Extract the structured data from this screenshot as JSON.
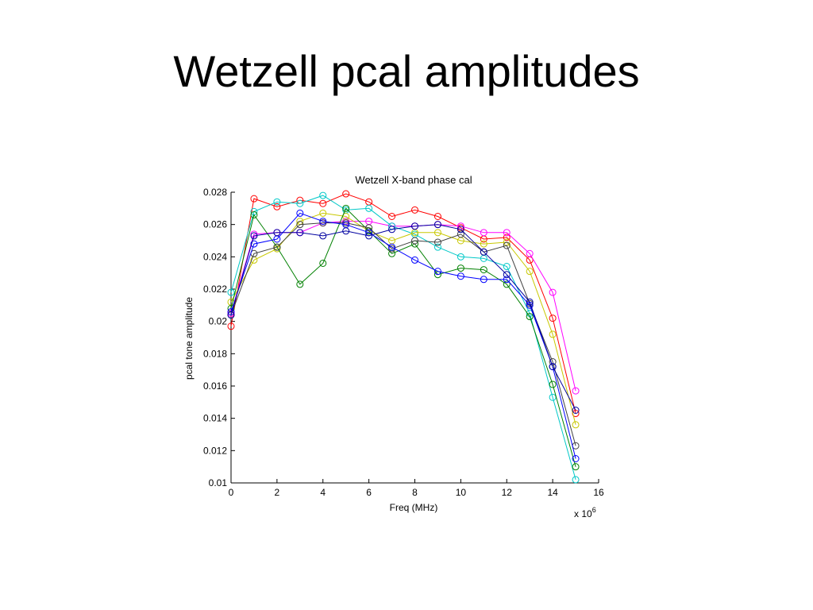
{
  "slide": {
    "title": "Wetzell pcal amplitudes"
  },
  "chart_data": {
    "type": "line",
    "title": "Wetzell X-band phase cal",
    "xlabel": "Freq (MHz)",
    "ylabel": "pcal tone amplitude",
    "x_exponent_label": "x 10",
    "x_exponent_power": "6",
    "xlim": [
      0,
      16
    ],
    "ylim": [
      0.01,
      0.028
    ],
    "xticks": [
      0,
      2,
      4,
      6,
      8,
      10,
      12,
      14,
      16
    ],
    "xtick_labels": [
      "0",
      "2",
      "4",
      "6",
      "8",
      "10",
      "12",
      "14",
      "16"
    ],
    "yticks": [
      0.01,
      0.012,
      0.014,
      0.016,
      0.018,
      0.02,
      0.022,
      0.024,
      0.026,
      0.028
    ],
    "ytick_labels": [
      "0.01",
      "0.012",
      "0.014",
      "0.016",
      "0.018",
      "0.02",
      "0.022",
      "0.024",
      "0.026",
      "0.028"
    ],
    "grid": false,
    "marker": "circle",
    "x": [
      0,
      1,
      2,
      3,
      4,
      5,
      6,
      7,
      8,
      9,
      10,
      11,
      12,
      13,
      14,
      15
    ],
    "series": [
      {
        "color": "#ff0000",
        "values": [
          0.0197,
          0.0276,
          0.0271,
          0.0275,
          0.0273,
          0.0279,
          0.0274,
          0.0265,
          0.0269,
          0.0265,
          0.0258,
          0.0251,
          0.0252,
          0.0238,
          0.0202,
          0.0143
        ]
      },
      {
        "color": "#ff00ff",
        "values": [
          0.0205,
          0.0254,
          0.0255,
          0.0255,
          0.0261,
          0.0262,
          0.0262,
          0.0259,
          0.0259,
          0.026,
          0.0259,
          0.0255,
          0.0255,
          0.0242,
          0.0218,
          0.0157
        ]
      },
      {
        "color": "#00c8c8",
        "values": [
          0.0218,
          0.0268,
          0.0274,
          0.0273,
          0.0278,
          0.0269,
          0.027,
          0.0259,
          0.0254,
          0.0246,
          0.024,
          0.0239,
          0.0234,
          0.0205,
          0.0153,
          0.0102
        ]
      },
      {
        "color": "#c8c800",
        "values": [
          0.0212,
          0.0238,
          0.0245,
          0.0262,
          0.0267,
          0.0265,
          0.0256,
          0.025,
          0.0255,
          0.0255,
          0.025,
          0.0248,
          0.0249,
          0.0231,
          0.0192,
          0.0136
        ]
      },
      {
        "color": "#008000",
        "values": [
          0.0208,
          0.0266,
          0.0246,
          0.0223,
          0.0236,
          0.027,
          0.0256,
          0.0242,
          0.0248,
          0.0229,
          0.0233,
          0.0232,
          0.0223,
          0.0203,
          0.0161,
          0.011
        ]
      },
      {
        "color": "#404040",
        "values": [
          0.0204,
          0.0242,
          0.0246,
          0.026,
          0.0261,
          0.0261,
          0.0258,
          0.0245,
          0.025,
          0.0249,
          0.0254,
          0.0243,
          0.0247,
          0.0211,
          0.0175,
          0.0123
        ]
      },
      {
        "color": "#0000ff",
        "values": [
          0.0206,
          0.0248,
          0.0251,
          0.0267,
          0.0262,
          0.026,
          0.0255,
          0.0246,
          0.0238,
          0.0231,
          0.0228,
          0.0226,
          0.0226,
          0.021,
          0.0172,
          0.0115
        ]
      },
      {
        "color": "#0000a0",
        "values": [
          0.0204,
          0.0253,
          0.0255,
          0.0255,
          0.0253,
          0.0256,
          0.0253,
          0.0257,
          0.0259,
          0.026,
          0.0257,
          0.0243,
          0.0229,
          0.0212,
          0.0172,
          0.0145
        ]
      }
    ]
  }
}
